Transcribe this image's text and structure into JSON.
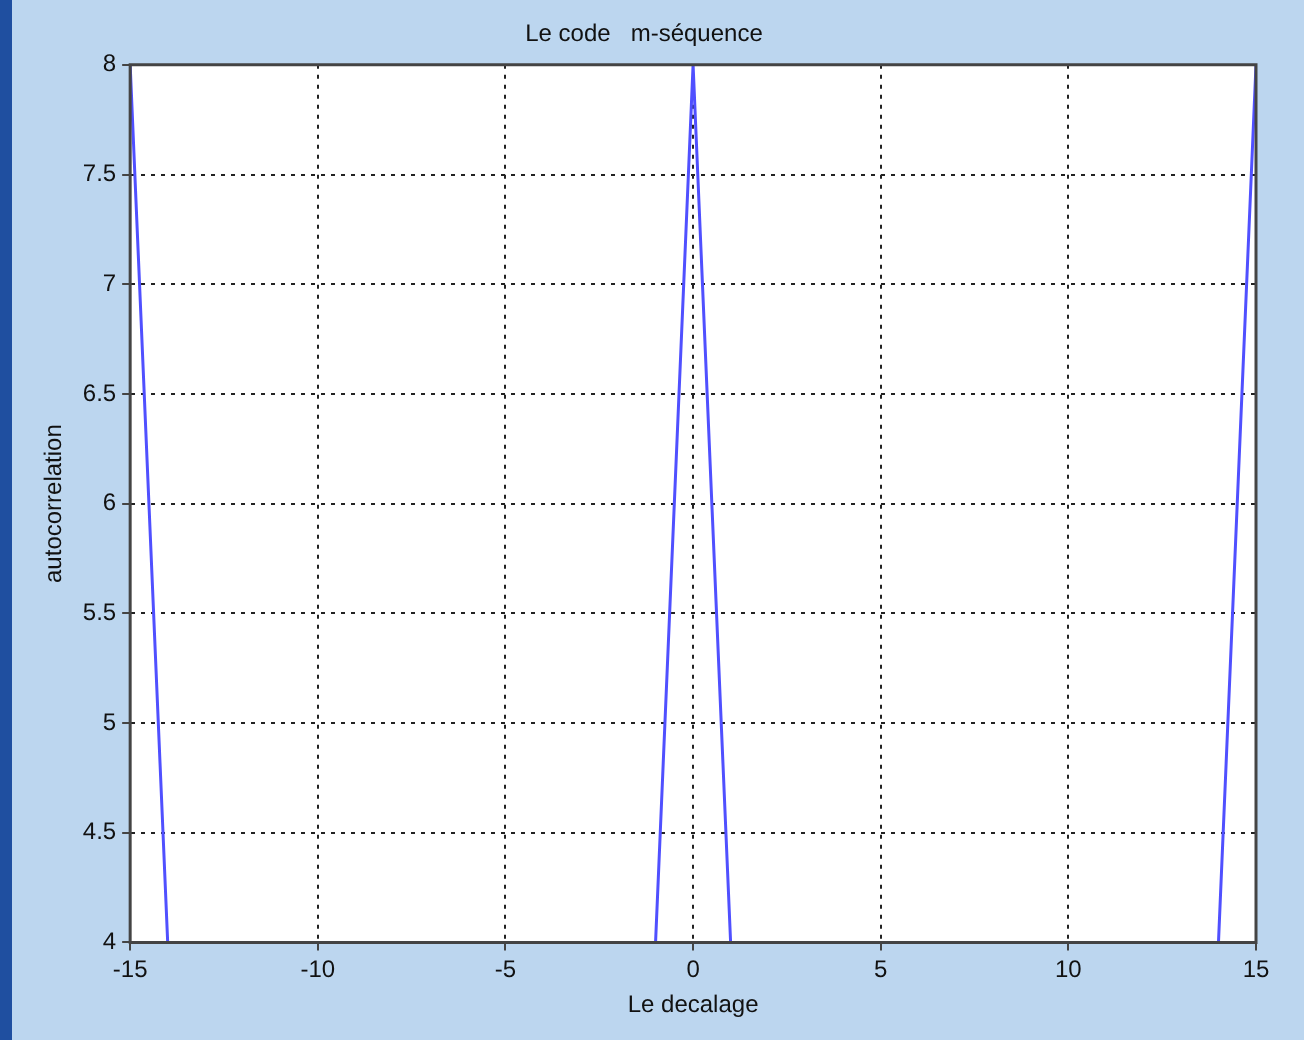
{
  "chart_data": {
    "type": "line",
    "title": "Le code   m-séquence",
    "xlabel": "Le decalage",
    "ylabel": "autocorrelation",
    "x": [
      -15,
      -14,
      -1,
      0,
      1,
      14,
      15
    ],
    "series": [
      {
        "color": "#5050ff",
        "values": [
          8,
          4,
          4,
          8,
          4,
          4,
          8
        ]
      }
    ],
    "xlim": [
      -15,
      15
    ],
    "xticks": [
      -15,
      -10,
      -5,
      0,
      5,
      10,
      15
    ],
    "ylim": [
      4,
      8
    ],
    "yticks": [
      4,
      4.5,
      5,
      5.5,
      6,
      6.5,
      7,
      7.5,
      8
    ],
    "grid": true,
    "legend": false,
    "marker": "none",
    "line_style": "solid"
  }
}
